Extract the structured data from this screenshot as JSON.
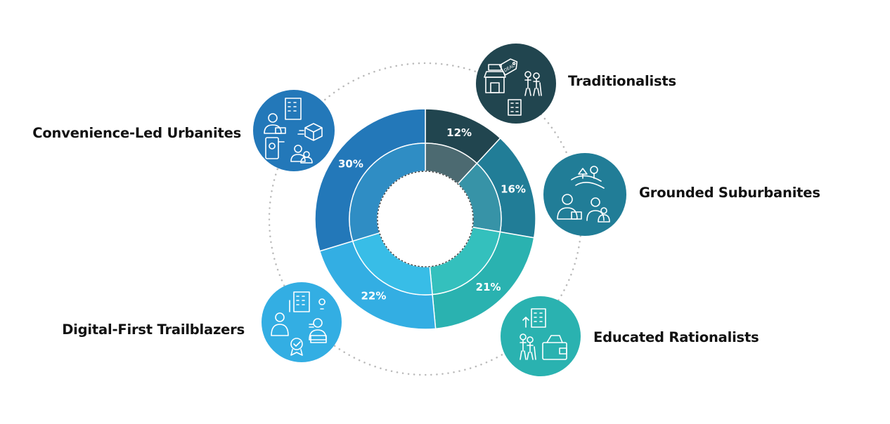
{
  "chart_data": {
    "type": "pie",
    "categories": [
      "Traditionalists",
      "Grounded Suburbanites",
      "Educated Rationalists",
      "Digital-First Trailblazers",
      "Convenience-Led Urbanites"
    ],
    "values": [
      12,
      16,
      21,
      22,
      30
    ],
    "value_labels": [
      "12%",
      "16%",
      "21%",
      "22%",
      "30%"
    ],
    "colors": [
      "#21454f",
      "#217d97",
      "#2ab2b0",
      "#33aee3",
      "#2378b9"
    ],
    "inner_colors": [
      "#4c6a71",
      "#3793a7",
      "#34c0bd",
      "#38bde7",
      "#2f8dc4"
    ],
    "donut": true,
    "title": "",
    "legend": "labels placed around chart with icon badges"
  },
  "icons": {
    "traditionalists": "store-deal-elderly-icon",
    "grounded_suburbanites": "countryside-family-icon",
    "educated_rationalists": "elderly-wallet-icon",
    "digital_first_trailblazers": "developer-award-icon",
    "convenience_led_urbanites": "delivery-mobile-icon"
  }
}
